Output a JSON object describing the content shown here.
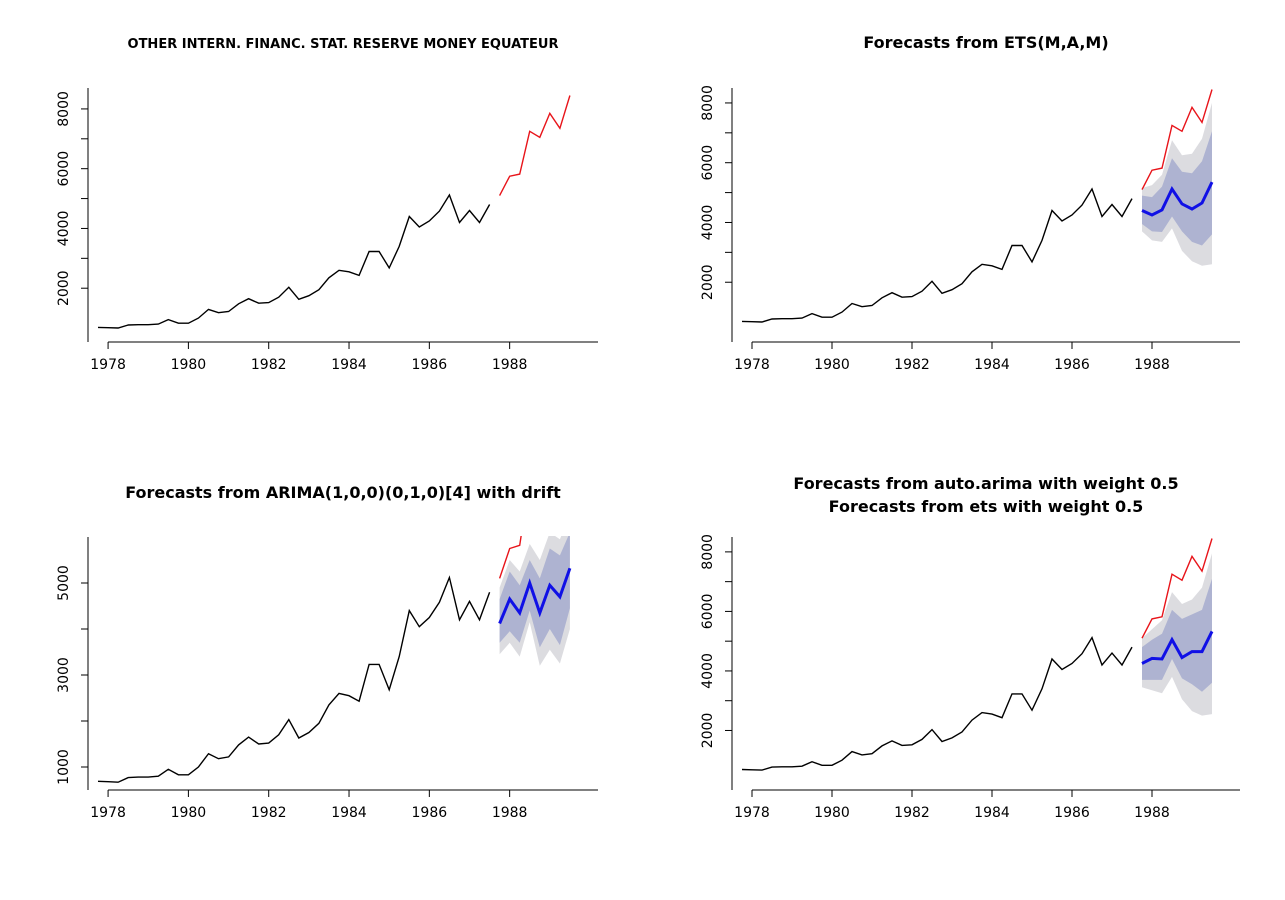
{
  "colors": {
    "history": "#000000",
    "actual": "#e8141a",
    "forecast": "#1010e6",
    "band80": "#aeb3d1",
    "band95": "#dcdce0"
  },
  "history_dates": [
    1977.75,
    1978.0,
    1978.25,
    1978.5,
    1978.75,
    1979.0,
    1979.25,
    1979.5,
    1979.75,
    1980.0,
    1980.25,
    1980.5,
    1980.75,
    1981.0,
    1981.25,
    1981.5,
    1981.75,
    1982.0,
    1982.25,
    1982.5,
    1982.75,
    1983.0,
    1983.25,
    1983.5,
    1983.75,
    1984.0,
    1984.25,
    1984.5,
    1984.75,
    1985.0,
    1985.25,
    1985.5,
    1985.75,
    1986.0,
    1986.25,
    1986.5,
    1986.75,
    1987.0,
    1987.25,
    1987.5
  ],
  "history_values": [
    690,
    680,
    670,
    770,
    780,
    780,
    800,
    950,
    830,
    830,
    1000,
    1290,
    1180,
    1220,
    1480,
    1650,
    1500,
    1520,
    1700,
    2030,
    1630,
    1750,
    1950,
    2350,
    2600,
    2550,
    2430,
    3230,
    3230,
    2680,
    3400,
    4400,
    4050,
    4250,
    4580,
    5120,
    4200,
    4600,
    4200,
    4800
  ],
  "actual_dates": [
    1987.75,
    1988.0,
    1988.25,
    1988.5,
    1988.75,
    1989.0,
    1989.25,
    1989.5
  ],
  "actual_values": [
    5100,
    5750,
    5820,
    7250,
    7050,
    7850,
    7350,
    8450
  ],
  "forecast_dates": [
    1987.75,
    1988.0,
    1988.25,
    1988.5,
    1988.75,
    1989.0,
    1989.25,
    1989.5
  ],
  "chart_data": [
    {
      "type": "line",
      "title": [
        "OTHER INTERN. FINANC. STAT. RESERVE MONEY EQUATEUR"
      ],
      "xlabel": "",
      "ylabel": "",
      "xlim": [
        1977.5,
        1990.2
      ],
      "ylim": [
        200,
        8700
      ],
      "x_ticks": [
        1978,
        1980,
        1982,
        1984,
        1986,
        1988
      ],
      "y_ticks": [
        2000,
        4000,
        6000,
        8000
      ],
      "series": [],
      "forecast": null
    },
    {
      "type": "line",
      "title": [
        "Forecasts from ETS(M,A,M)"
      ],
      "xlabel": "",
      "ylabel": "",
      "xlim": [
        1977.5,
        1990.2
      ],
      "ylim": [
        0,
        8500
      ],
      "x_ticks": [
        1978,
        1980,
        1982,
        1984,
        1986,
        1988
      ],
      "y_ticks": [
        2000,
        4000,
        6000,
        8000
      ],
      "series": [],
      "forecast": {
        "mean": [
          4400,
          4250,
          4420,
          5120,
          4620,
          4450,
          4650,
          5350
        ],
        "lo80": [
          3950,
          3700,
          3680,
          4200,
          3700,
          3350,
          3230,
          3600
        ],
        "hi80": [
          4900,
          4850,
          5200,
          6150,
          5700,
          5650,
          6050,
          7050
        ],
        "lo95": [
          3700,
          3400,
          3350,
          3800,
          3050,
          2700,
          2550,
          2600
        ],
        "hi95": [
          5150,
          5250,
          5600,
          6750,
          6250,
          6300,
          6800,
          8000
        ]
      }
    },
    {
      "type": "line",
      "title": [
        "Forecasts from ARIMA(1,0,0)(0,1,0)[4] with drift"
      ],
      "xlabel": "",
      "ylabel": "",
      "xlim": [
        1977.5,
        1990.2
      ],
      "ylim": [
        500,
        6000
      ],
      "x_ticks": [
        1978,
        1980,
        1982,
        1984,
        1986,
        1988
      ],
      "y_ticks": [
        1000,
        3000,
        5000
      ],
      "series": [],
      "forecast": {
        "mean": [
          4120,
          4650,
          4350,
          5000,
          4350,
          4950,
          4700,
          5320
        ],
        "lo80": [
          3700,
          3950,
          3700,
          4400,
          3600,
          4000,
          3650,
          4450
        ],
        "hi80": [
          4650,
          5250,
          4950,
          5500,
          5100,
          5750,
          5600,
          6100
        ],
        "lo95": [
          3450,
          3700,
          3400,
          4150,
          3200,
          3550,
          3250,
          4000
        ],
        "hi95": [
          4900,
          5500,
          5250,
          5850,
          5500,
          6100,
          5950,
          6500
        ]
      }
    },
    {
      "type": "line",
      "title": [
        "Forecasts from auto.arima with weight 0.5",
        "Forecasts from ets with weight 0.5"
      ],
      "xlabel": "",
      "ylabel": "",
      "xlim": [
        1977.5,
        1990.2
      ],
      "ylim": [
        0,
        8500
      ],
      "x_ticks": [
        1978,
        1980,
        1982,
        1984,
        1986,
        1988
      ],
      "y_ticks": [
        2000,
        4000,
        6000,
        8000
      ],
      "series": [],
      "forecast": {
        "mean": [
          4250,
          4420,
          4400,
          5050,
          4450,
          4650,
          4650,
          5330
        ],
        "lo80": [
          3700,
          3700,
          3700,
          4400,
          3750,
          3550,
          3300,
          3600
        ],
        "hi80": [
          4800,
          5050,
          5250,
          6050,
          5750,
          5900,
          6050,
          7100
        ],
        "lo95": [
          3450,
          3350,
          3250,
          3800,
          3050,
          2650,
          2500,
          2550
        ],
        "hi95": [
          5100,
          5400,
          5700,
          6650,
          6250,
          6400,
          6800,
          7950
        ]
      }
    }
  ]
}
